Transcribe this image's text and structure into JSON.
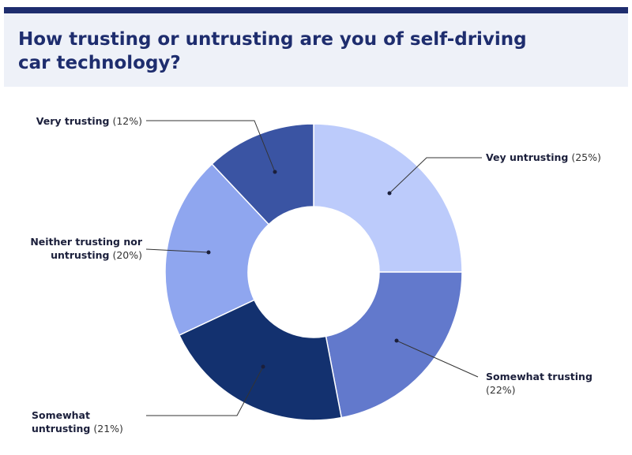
{
  "chart_data": {
    "type": "donut",
    "title": "How trusting or untrusting are you of self-driving car technology?",
    "categories": [
      "Vey untrusting",
      "Somewhat trusting",
      "Somewhat untrusting",
      "Neither trusting nor untrusting",
      "Very trusting"
    ],
    "values": [
      25,
      22,
      21,
      20,
      12
    ],
    "value_labels": [
      "(25%)",
      "(22%)",
      "(21%)",
      "(20%)",
      "(12%)"
    ],
    "colors": [
      "#bccbfb",
      "#6279cc",
      "#13316f",
      "#8fa6ef",
      "#3a54a3"
    ]
  }
}
